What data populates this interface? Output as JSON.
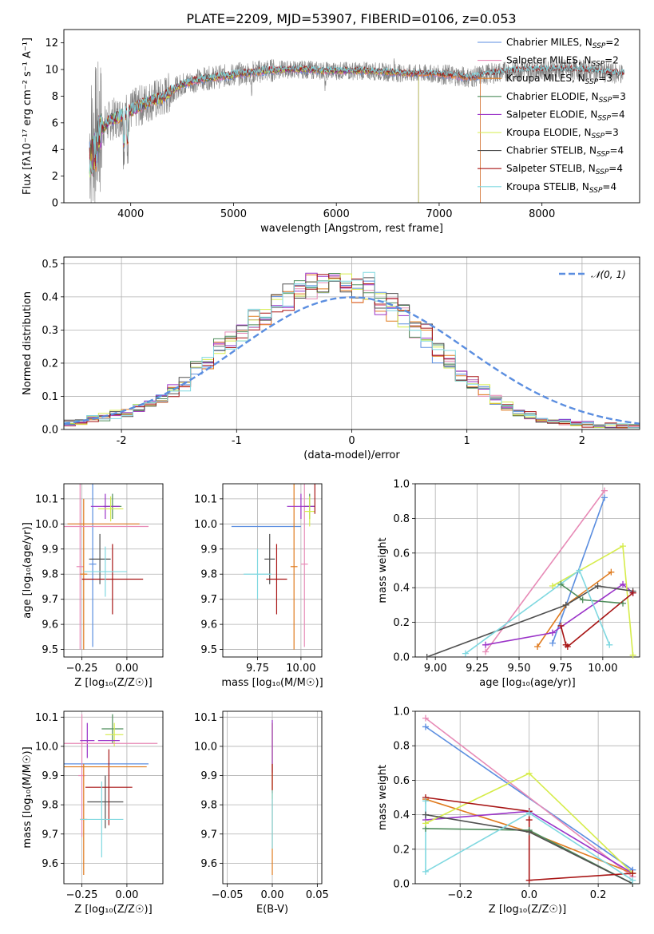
{
  "figure": {
    "title": "PLATE=2209, MJD=53907, FIBERID=0106, z=0.053"
  },
  "colors": {
    "Chabrier MILES": "#5b8ee0",
    "Salpeter MILES": "#e78ab6",
    "Kroupa MILES": "#e07b1f",
    "Chabrier ELODIE": "#4e8d5b",
    "Salpeter ELODIE": "#9a32c8",
    "Kroupa ELODIE": "#d6ec4b",
    "Chabrier STELIB": "#505050",
    "Salpeter STELIB": "#a81515",
    "Kroupa STELIB": "#7fd8e0",
    "data": "#808080",
    "normal": "#5b8ee0",
    "grid": "#b0b0b0"
  },
  "chart_data": [
    {
      "id": "spectrum",
      "type": "line",
      "title": "PLATE=2209, MJD=53907, FIBERID=0106, z=0.053",
      "xlabel": "wavelength [Angstrom, rest frame]",
      "ylabel": "Flux [fλ10⁻¹⁷ erg cm⁻² s⁻¹ A⁻¹]",
      "xlim": [
        3350,
        8950
      ],
      "ylim": [
        0,
        13
      ],
      "xticks": [
        4000,
        5000,
        6000,
        7000,
        8000
      ],
      "yticks": [
        0,
        2,
        4,
        6,
        8,
        10,
        12
      ],
      "grid": false,
      "legend_position": "top-right",
      "data_range": [
        3600,
        8800
      ],
      "continuum": {
        "x": [
          3600,
          3700,
          3800,
          3900,
          4000,
          4100,
          4200,
          4300,
          4400,
          4500,
          4700,
          4900,
          5100,
          5300,
          5500,
          5700,
          5900,
          6100,
          6300,
          6500,
          6700,
          6900,
          7100,
          7300,
          7500,
          7700,
          7900,
          8100,
          8300,
          8500,
          8700
        ],
        "y": [
          4.5,
          5.4,
          6.2,
          6.5,
          6.9,
          7.3,
          7.7,
          7.8,
          8.4,
          8.9,
          9.3,
          9.5,
          9.7,
          9.9,
          10.0,
          10.0,
          9.9,
          9.9,
          9.9,
          9.8,
          9.7,
          9.7,
          9.6,
          9.4,
          9.7,
          9.9,
          10.0,
          10.0,
          10.0,
          9.9,
          9.7
        ]
      },
      "series": [
        {
          "name": "Chabrier MILES, N_SSP=2",
          "end": 7400
        },
        {
          "name": "Salpeter MILES, N_SSP=2",
          "end": 7400
        },
        {
          "name": "Kroupa MILES, N_SSP=3",
          "end": 7400
        },
        {
          "name": "Chabrier ELODIE, N_SSP=3",
          "end": 6800
        },
        {
          "name": "Salpeter ELODIE, N_SSP=4",
          "end": 6800
        },
        {
          "name": "Kroupa ELODIE, N_SSP=3",
          "end": 6800
        },
        {
          "name": "Chabrier STELIB, N_SSP=4",
          "end": 8800
        },
        {
          "name": "Salpeter STELIB, N_SSP=4",
          "end": 8800
        },
        {
          "name": "Kroupa STELIB, N_SSP=4",
          "end": 8800
        }
      ]
    },
    {
      "id": "residuals",
      "type": "bar",
      "xlabel": "(data-model)/error",
      "ylabel": "Normed distribution",
      "xlim": [
        -2.5,
        2.5
      ],
      "ylim": [
        0,
        0.52
      ],
      "xticks": [
        -2,
        -1,
        0,
        1,
        2
      ],
      "yticks": [
        0.0,
        0.1,
        0.2,
        0.3,
        0.4,
        0.5
      ],
      "grid": true,
      "legend_position": "top-right",
      "normal_label": "𝒩(0, 1)",
      "bin_width": 0.1,
      "bin_start": -2.5,
      "envelope": [
        0.02,
        0.024,
        0.028,
        0.032,
        0.036,
        0.04,
        0.044,
        0.05,
        0.058,
        0.068,
        0.08,
        0.092,
        0.105,
        0.12,
        0.14,
        0.16,
        0.18,
        0.2,
        0.22,
        0.24,
        0.265,
        0.29,
        0.31,
        0.33,
        0.35,
        0.365,
        0.38,
        0.395,
        0.405,
        0.415,
        0.425,
        0.435,
        0.44,
        0.445,
        0.445,
        0.44,
        0.43,
        0.42,
        0.405,
        0.39,
        0.37,
        0.35,
        0.33,
        0.31,
        0.285,
        0.26,
        0.235,
        0.21,
        0.185,
        0.16,
        0.14,
        0.12,
        0.1,
        0.085,
        0.072,
        0.06,
        0.05,
        0.042,
        0.036,
        0.03,
        0.025,
        0.022,
        0.02,
        0.018,
        0.016,
        0.014,
        0.013,
        0.012,
        0.011,
        0.01,
        0.01
      ],
      "series_names": [
        "Chabrier MILES",
        "Salpeter MILES",
        "Kroupa MILES",
        "Chabrier ELODIE",
        "Salpeter ELODIE",
        "Kroupa ELODIE",
        "Chabrier STELIB",
        "Salpeter STELIB",
        "Kroupa STELIB"
      ]
    },
    {
      "id": "z-age",
      "type": "scatter",
      "xlabel": "Z [log₁₀(Z/Z☉)]",
      "ylabel": "age  [log₁₀(age/yr)]",
      "xlim": [
        -0.35,
        0.2
      ],
      "ylim": [
        9.47,
        10.16
      ],
      "xticks": [
        -0.25,
        0.0
      ],
      "xticklabels": [
        "−0.25",
        "0.00"
      ],
      "yticks": [
        9.5,
        9.6,
        9.7,
        9.8,
        9.9,
        10.0,
        10.1
      ],
      "grid": true,
      "points": [
        {
          "s": "Chabrier MILES",
          "x": -0.19,
          "y": 9.84,
          "xerr": 0.02,
          "yerr": 0.33
        },
        {
          "s": "Salpeter MILES",
          "x": -0.26,
          "y": 9.83,
          "xerr": 0.02,
          "yerr": 0.33
        },
        {
          "s": "Kroupa MILES",
          "x": -0.24,
          "y": 9.8,
          "xerr": 0.02,
          "yerr": 0.3
        },
        {
          "s": "Chabrier ELODIE",
          "x": -0.08,
          "y": 10.07,
          "xerr": 0.05,
          "yerr": 0.05
        },
        {
          "s": "Salpeter ELODIE",
          "x": -0.12,
          "y": 10.07,
          "xerr": 0.08,
          "yerr": 0.05
        },
        {
          "s": "Kroupa ELODIE",
          "x": -0.09,
          "y": 10.06,
          "xerr": 0.07,
          "yerr": 0.05
        },
        {
          "s": "Chabrier STELIB",
          "x": -0.15,
          "y": 9.86,
          "xerr": 0.06,
          "yerr": 0.1
        },
        {
          "s": "Salpeter STELIB",
          "x": -0.08,
          "y": 9.78,
          "xerr": 0.17,
          "yerr": 0.14
        },
        {
          "s": "Kroupa STELIB",
          "x": -0.12,
          "y": 9.81,
          "xerr": 0.12,
          "yerr": 0.1
        },
        {
          "s": "Kroupa MILES",
          "x": -0.13,
          "y": 10.0,
          "xerr": 0.2,
          "yerr": 0.0
        },
        {
          "s": "Salpeter MILES",
          "x": -0.12,
          "y": 9.99,
          "xerr": 0.24,
          "yerr": 0.0
        }
      ]
    },
    {
      "id": "mass-age",
      "type": "scatter",
      "xlabel": "mass [log₁₀(M/M☉)]",
      "ylabel": "",
      "xlim": [
        9.55,
        10.12
      ],
      "ylim": [
        9.47,
        10.16
      ],
      "xticks": [
        9.75,
        10.0
      ],
      "xticklabels": [
        "9.75",
        "10.00"
      ],
      "yticks": [
        9.5,
        9.6,
        9.7,
        9.8,
        9.9,
        10.0,
        10.1
      ],
      "grid": true,
      "points": [
        {
          "s": "Chabrier MILES",
          "x": 9.8,
          "y": 9.99,
          "xerr": 0.2,
          "yerr": 0.0
        },
        {
          "s": "Salpeter MILES",
          "x": 10.02,
          "y": 9.84,
          "xerr": 0.02,
          "yerr": 0.33
        },
        {
          "s": "Kroupa MILES",
          "x": 9.96,
          "y": 9.83,
          "xerr": 0.02,
          "yerr": 0.33
        },
        {
          "s": "Chabrier ELODIE",
          "x": 10.05,
          "y": 10.07,
          "xerr": 0.03,
          "yerr": 0.05
        },
        {
          "s": "Salpeter ELODIE",
          "x": 10.0,
          "y": 10.07,
          "xerr": 0.08,
          "yerr": 0.05
        },
        {
          "s": "Kroupa ELODIE",
          "x": 10.05,
          "y": 10.05,
          "xerr": 0.03,
          "yerr": 0.06
        },
        {
          "s": "Chabrier STELIB",
          "x": 9.82,
          "y": 9.86,
          "xerr": 0.03,
          "yerr": 0.1
        },
        {
          "s": "Salpeter STELIB",
          "x": 9.86,
          "y": 9.78,
          "xerr": 0.06,
          "yerr": 0.14
        },
        {
          "s": "Kroupa STELIB",
          "x": 9.75,
          "y": 9.8,
          "xerr": 0.08,
          "yerr": 0.1
        },
        {
          "s": "Salpeter STELIB",
          "x": 10.08,
          "y": 10.1,
          "xerr": 0.0,
          "yerr": 0.06
        }
      ]
    },
    {
      "id": "weight-age",
      "type": "line",
      "xlabel": "age  [log₁₀(age/yr)]",
      "ylabel": "mass weight",
      "xlim": [
        8.88,
        10.22
      ],
      "ylim": [
        0.0,
        1.0
      ],
      "xticks": [
        9.0,
        9.25,
        9.5,
        9.75,
        10.0
      ],
      "xticklabels": [
        "9.00",
        "9.25",
        "9.50",
        "9.75",
        "10.00"
      ],
      "yticks": [
        0.0,
        0.2,
        0.4,
        0.6,
        0.8,
        1.0
      ],
      "grid": true,
      "lines": [
        {
          "s": "Chabrier MILES",
          "x": [
            9.7,
            10.01
          ],
          "y": [
            0.08,
            0.92
          ]
        },
        {
          "s": "Salpeter MILES",
          "x": [
            9.3,
            10.01
          ],
          "y": [
            0.03,
            0.96
          ]
        },
        {
          "s": "Kroupa MILES",
          "x": [
            9.61,
            9.78,
            10.05
          ],
          "y": [
            0.06,
            0.3,
            0.49
          ]
        },
        {
          "s": "Chabrier ELODIE",
          "x": [
            9.75,
            9.88,
            10.12
          ],
          "y": [
            0.42,
            0.33,
            0.31
          ]
        },
        {
          "s": "Salpeter ELODIE",
          "x": [
            9.3,
            9.7,
            10.12,
            10.18
          ],
          "y": [
            0.07,
            0.14,
            0.42,
            0.37
          ]
        },
        {
          "s": "Kroupa ELODIE",
          "x": [
            9.7,
            10.12,
            10.18
          ],
          "y": [
            0.41,
            0.64,
            0.01
          ]
        },
        {
          "s": "Chabrier STELIB",
          "x": [
            8.95,
            9.78,
            9.97,
            10.18
          ],
          "y": [
            0.0,
            0.3,
            0.41,
            0.38
          ]
        },
        {
          "s": "Salpeter STELIB",
          "x": [
            9.75,
            9.78,
            9.79,
            10.18
          ],
          "y": [
            0.18,
            0.07,
            0.06,
            0.37
          ]
        },
        {
          "s": "Kroupa STELIB",
          "x": [
            9.18,
            9.86,
            10.04
          ],
          "y": [
            0.02,
            0.5,
            0.07
          ]
        }
      ]
    },
    {
      "id": "z-mass",
      "type": "scatter",
      "xlabel": "Z [log₁₀(Z/Z☉)]",
      "ylabel": "mass [log₁₀(M/M☉)]",
      "xlim": [
        -0.35,
        0.2
      ],
      "ylim": [
        9.53,
        10.12
      ],
      "xticks": [
        -0.25,
        0.0
      ],
      "xticklabels": [
        "−0.25",
        "0.00"
      ],
      "yticks": [
        9.6,
        9.7,
        9.8,
        9.9,
        10.0,
        10.1
      ],
      "grid": true,
      "points": [
        {
          "s": "Chabrier MILES",
          "x": -0.12,
          "y": 9.94,
          "xerr": 0.24,
          "yerr": 0.0
        },
        {
          "s": "Salpeter MILES",
          "x": -0.25,
          "y": 9.9,
          "xerr": 0.02,
          "yerr": 0.21
        },
        {
          "s": "Kroupa MILES",
          "x": -0.24,
          "y": 9.75,
          "xerr": 0.02,
          "yerr": 0.19
        },
        {
          "s": "Chabrier ELODIE",
          "x": -0.08,
          "y": 10.06,
          "xerr": 0.06,
          "yerr": 0.05
        },
        {
          "s": "Salpeter ELODIE",
          "x": -0.22,
          "y": 10.02,
          "xerr": 0.04,
          "yerr": 0.06
        },
        {
          "s": "Kroupa ELODIE",
          "x": -0.07,
          "y": 10.04,
          "xerr": 0.05,
          "yerr": 0.04
        },
        {
          "s": "Chabrier STELIB",
          "x": -0.12,
          "y": 9.81,
          "xerr": 0.1,
          "yerr": 0.09
        },
        {
          "s": "Salpeter STELIB",
          "x": -0.1,
          "y": 9.86,
          "xerr": 0.13,
          "yerr": 0.13
        },
        {
          "s": "Kroupa STELIB",
          "x": -0.14,
          "y": 9.75,
          "xerr": 0.12,
          "yerr": 0.13
        },
        {
          "s": "Salpeter MILES",
          "x": -0.1,
          "y": 10.01,
          "xerr": 0.27,
          "yerr": 0.0
        },
        {
          "s": "Kroupa MILES",
          "x": -0.12,
          "y": 9.93,
          "xerr": 0.23,
          "yerr": 0.0
        },
        {
          "s": "Salpeter ELODIE",
          "x": -0.1,
          "y": 10.02,
          "xerr": 0.06,
          "yerr": 0.0
        }
      ]
    },
    {
      "id": "ebv-mass",
      "type": "scatter",
      "xlabel": "E(B-V)",
      "ylabel": "",
      "xlim": [
        -0.055,
        0.055
      ],
      "ylim": [
        9.53,
        10.12
      ],
      "xticks": [
        -0.05,
        0.0,
        0.05
      ],
      "xticklabels": [
        "−0.05",
        "0.00",
        "0.05"
      ],
      "yticks": [
        9.6,
        9.7,
        9.8,
        9.9,
        10.0,
        10.1
      ],
      "grid": true,
      "points": [
        {
          "s": "Kroupa MILES",
          "x": 0.0,
          "y": 9.82,
          "xerr": 0.0,
          "yerr": 0.26
        },
        {
          "s": "Kroupa ELODIE",
          "x": 0.0,
          "y": 9.95,
          "xerr": 0.0,
          "yerr": 0.13
        },
        {
          "s": "Salpeter ELODIE",
          "x": 0.0,
          "y": 10.0,
          "xerr": 0.0,
          "yerr": 0.09
        },
        {
          "s": "Salpeter STELIB",
          "x": 0.0,
          "y": 9.89,
          "xerr": 0.0,
          "yerr": 0.05
        },
        {
          "s": "Kroupa STELIB",
          "x": 0.0,
          "y": 9.75,
          "xerr": 0.0,
          "yerr": 0.1
        }
      ]
    },
    {
      "id": "weight-z",
      "type": "line",
      "xlabel": "Z [log₁₀(Z/Z☉)]",
      "ylabel": "mass weight",
      "xlim": [
        -0.33,
        0.32
      ],
      "ylim": [
        0.0,
        1.0
      ],
      "xticks": [
        -0.2,
        0.0,
        0.2
      ],
      "xticklabels": [
        "−0.2",
        "0.0",
        "0.2"
      ],
      "yticks": [
        0.0,
        0.2,
        0.4,
        0.6,
        0.8,
        1.0
      ],
      "grid": true,
      "lines": [
        {
          "s": "Chabrier MILES",
          "x": [
            -0.3,
            0.3
          ],
          "y": [
            0.91,
            0.08
          ]
        },
        {
          "s": "Salpeter MILES",
          "x": [
            -0.3,
            0.3
          ],
          "y": [
            0.96,
            0.04
          ]
        },
        {
          "s": "Kroupa MILES",
          "x": [
            -0.3,
            0.0,
            0.3
          ],
          "y": [
            0.49,
            0.3,
            0.06
          ]
        },
        {
          "s": "Chabrier ELODIE",
          "x": [
            -0.3,
            0.0,
            0.3
          ],
          "y": [
            0.32,
            0.31,
            0.0
          ]
        },
        {
          "s": "Salpeter ELODIE",
          "x": [
            -0.3,
            0.0,
            0.3
          ],
          "y": [
            0.37,
            0.42,
            0.06
          ]
        },
        {
          "s": "Kroupa ELODIE",
          "x": [
            -0.3,
            0.0,
            0.3
          ],
          "y": [
            0.35,
            0.64,
            0.06
          ]
        },
        {
          "s": "Chabrier STELIB",
          "x": [
            -0.3,
            0.0,
            0.3
          ],
          "y": [
            0.4,
            0.3,
            0.0
          ]
        },
        {
          "s": "Salpeter STELIB",
          "x": [
            -0.3,
            0.0,
            0.0,
            0.0,
            0.3
          ],
          "y": [
            0.5,
            0.42,
            0.37,
            0.02,
            0.06
          ]
        },
        {
          "s": "Kroupa STELIB",
          "x": [
            -0.3,
            -0.3,
            0.0,
            0.3
          ],
          "y": [
            0.48,
            0.07,
            0.41,
            0.02
          ]
        }
      ]
    }
  ]
}
